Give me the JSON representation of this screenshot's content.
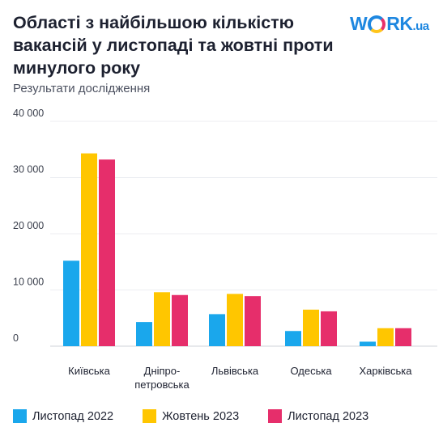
{
  "brand": {
    "logo_prefix": "W",
    "logo_suffix": "RK",
    "logo_domain": ".ua",
    "logo_color": "#1e87e0"
  },
  "chart_data": {
    "type": "bar",
    "title": "Області з найбільшою кількістю вакансій у листопаді та жовтні проти минулого року",
    "subtitle": "Результати дослідження",
    "categories": [
      "Київська",
      "Дніпро-\nпетровська",
      "Львівська",
      "Одеська",
      "Харківська"
    ],
    "series": [
      {
        "name": "Листопад 2022",
        "color": "#1aa7ec",
        "values": [
          15200,
          4300,
          5700,
          2700,
          800
        ]
      },
      {
        "name": "Жовтень 2023",
        "color": "#ffc600",
        "values": [
          34300,
          9600,
          9300,
          6500,
          3200
        ]
      },
      {
        "name": "Листопад 2023",
        "color": "#e62e6b",
        "values": [
          33200,
          9100,
          8900,
          6200,
          3200
        ]
      }
    ],
    "ylim": [
      0,
      40000
    ],
    "yticks": [
      0,
      10000,
      20000,
      30000,
      40000
    ],
    "ytick_labels": [
      "0",
      "10 000",
      "20 000",
      "30 000",
      "40 000"
    ],
    "grid": true,
    "legend_position": "bottom-left"
  }
}
